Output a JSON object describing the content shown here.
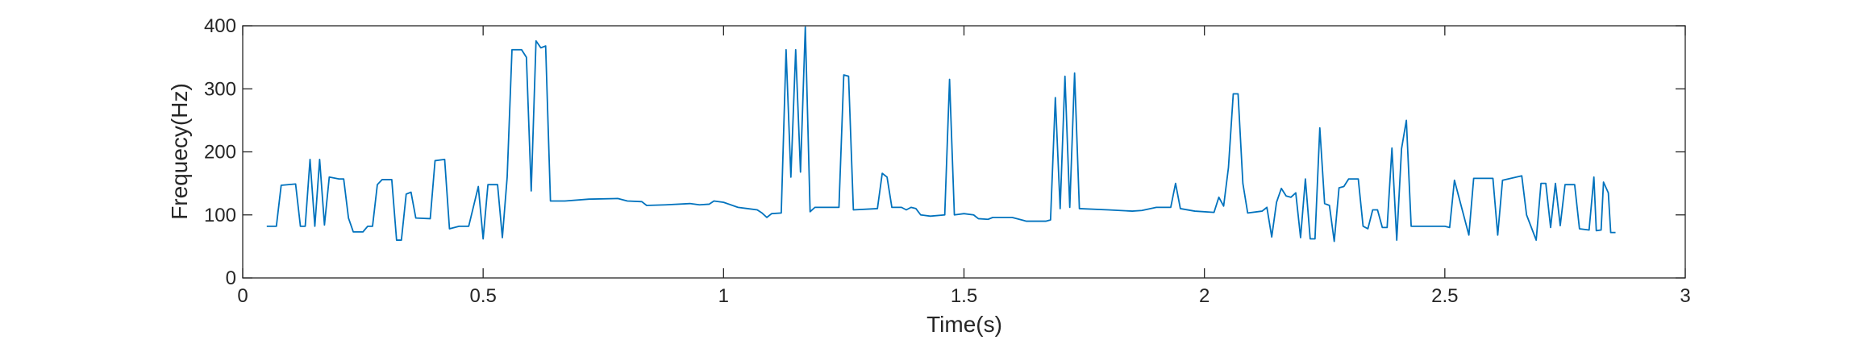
{
  "chart_data": {
    "type": "line",
    "xlabel": "Time(s)",
    "ylabel": "Frequecy(Hz)",
    "xlim": [
      0,
      3
    ],
    "xticks": [
      0,
      0.5,
      1,
      1.5,
      2,
      2.5,
      3
    ],
    "ylim": [
      0,
      400
    ],
    "yticks": [
      0,
      100,
      200,
      300,
      400
    ],
    "color": "#0072bd",
    "x": [
      0.05,
      0.07,
      0.08,
      0.11,
      0.12,
      0.13,
      0.14,
      0.15,
      0.16,
      0.17,
      0.18,
      0.2,
      0.21,
      0.22,
      0.23,
      0.25,
      0.26,
      0.27,
      0.28,
      0.29,
      0.31,
      0.32,
      0.33,
      0.34,
      0.35,
      0.36,
      0.39,
      0.4,
      0.42,
      0.43,
      0.45,
      0.47,
      0.49,
      0.5,
      0.51,
      0.53,
      0.54,
      0.55,
      0.56,
      0.58,
      0.59,
      0.6,
      0.61,
      0.62,
      0.63,
      0.64,
      0.67,
      0.72,
      0.78,
      0.8,
      0.83,
      0.84,
      0.88,
      0.93,
      0.95,
      0.97,
      0.98,
      1.0,
      1.03,
      1.05,
      1.07,
      1.08,
      1.09,
      1.1,
      1.12,
      1.13,
      1.14,
      1.15,
      1.16,
      1.17,
      1.18,
      1.19,
      1.24,
      1.25,
      1.26,
      1.27,
      1.32,
      1.33,
      1.34,
      1.35,
      1.37,
      1.38,
      1.39,
      1.4,
      1.41,
      1.43,
      1.46,
      1.47,
      1.48,
      1.5,
      1.52,
      1.53,
      1.55,
      1.56,
      1.6,
      1.62,
      1.63,
      1.67,
      1.68,
      1.69,
      1.7,
      1.71,
      1.72,
      1.73,
      1.74,
      1.8,
      1.85,
      1.87,
      1.9,
      1.93,
      1.94,
      1.95,
      1.98,
      2.02,
      2.03,
      2.04,
      2.05,
      2.06,
      2.07,
      2.08,
      2.09,
      2.12,
      2.13,
      2.14,
      2.15,
      2.16,
      2.17,
      2.18,
      2.19,
      2.2,
      2.21,
      2.22,
      2.23,
      2.24,
      2.25,
      2.26,
      2.27,
      2.28,
      2.29,
      2.3,
      2.32,
      2.33,
      2.34,
      2.35,
      2.36,
      2.37,
      2.38,
      2.39,
      2.4,
      2.41,
      2.42,
      2.43,
      2.5,
      2.51,
      2.52,
      2.55,
      2.56,
      2.6,
      2.61,
      2.62,
      2.66,
      2.67,
      2.69,
      2.7,
      2.71,
      2.72,
      2.73,
      2.74,
      2.75,
      2.77,
      2.78,
      2.8,
      2.81,
      2.815,
      2.825,
      2.83,
      2.84,
      2.845,
      2.855
    ],
    "values": [
      82,
      82,
      147,
      149,
      82,
      82,
      188,
      82,
      188,
      84,
      160,
      157,
      157,
      95,
      73,
      73,
      82,
      82,
      148,
      156,
      156,
      60,
      60,
      133,
      136,
      95,
      94,
      186,
      188,
      78,
      82,
      82,
      145,
      62,
      148,
      148,
      64,
      160,
      362,
      362,
      350,
      138,
      376,
      365,
      368,
      122,
      122,
      125,
      126,
      122,
      121,
      115,
      116,
      118,
      116,
      117,
      122,
      120,
      112,
      110,
      108,
      103,
      96,
      102,
      103,
      362,
      160,
      362,
      168,
      398,
      105,
      112,
      112,
      322,
      320,
      108,
      110,
      166,
      160,
      112,
      112,
      108,
      112,
      110,
      100,
      98,
      100,
      315,
      100,
      102,
      100,
      94,
      93,
      96,
      96,
      92,
      90,
      90,
      92,
      286,
      110,
      320,
      112,
      325,
      110,
      108,
      106,
      107,
      112,
      112,
      150,
      110,
      106,
      104,
      128,
      114,
      175,
      292,
      292,
      150,
      103,
      106,
      112,
      65,
      120,
      142,
      130,
      128,
      135,
      64,
      157,
      62,
      62,
      238,
      118,
      115,
      58,
      143,
      145,
      157,
      157,
      82,
      78,
      108,
      108,
      80,
      80,
      206,
      60,
      205,
      250,
      82,
      82,
      80,
      155,
      68,
      158,
      158,
      68,
      155,
      162,
      100,
      60,
      150,
      150,
      80,
      150,
      83,
      148,
      148,
      78,
      76,
      160,
      75,
      76,
      152,
      135,
      72,
      72
    ]
  }
}
